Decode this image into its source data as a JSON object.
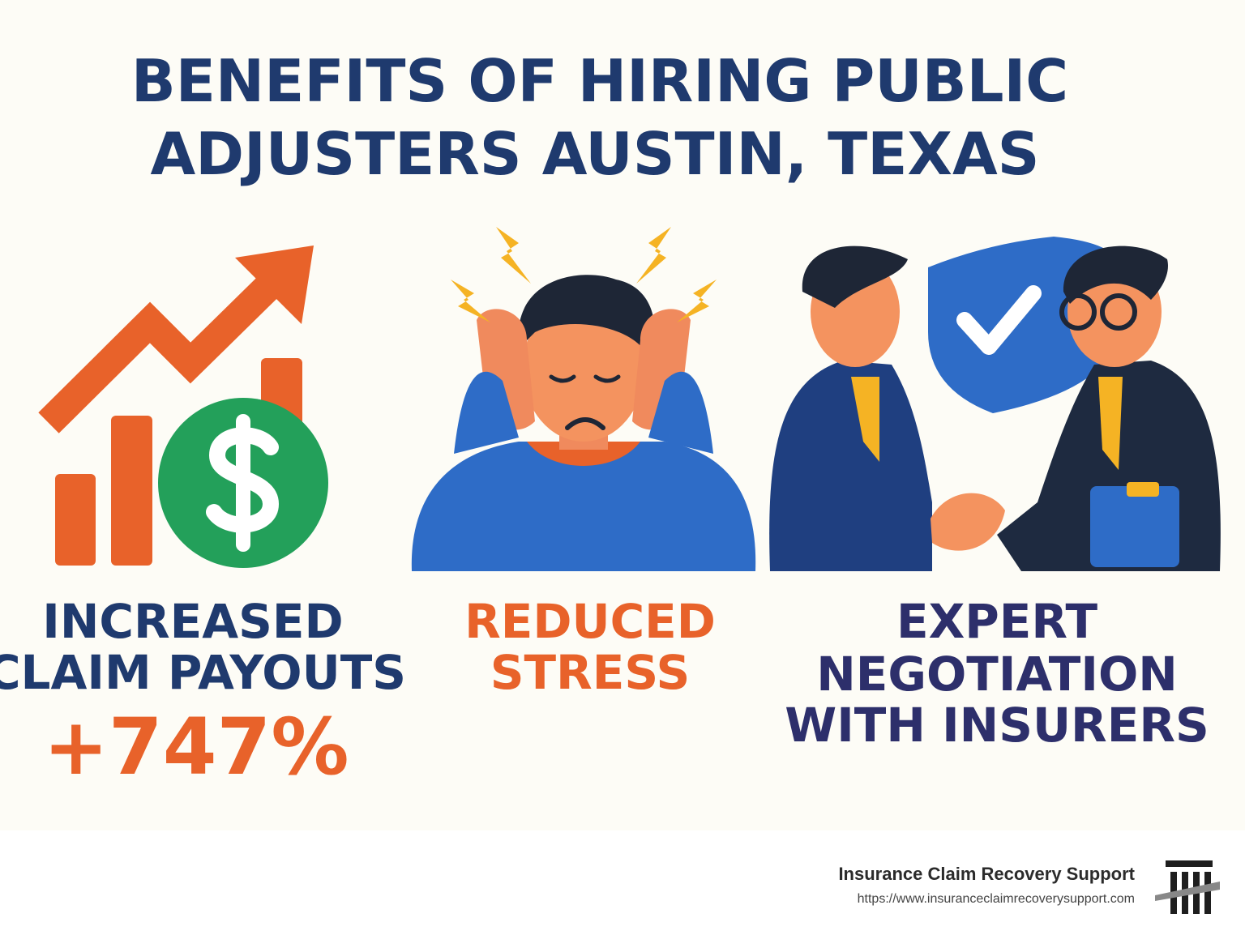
{
  "header": {
    "title_lines": [
      "BENEFITS OF HIRING PUBLIC",
      "ADJUSTERS AUSTIN, TEXAS"
    ]
  },
  "panels": [
    {
      "lines": [
        "INCREASED",
        "CLAIM PAYOUTS"
      ],
      "stat": "+747%"
    },
    {
      "lines": [
        "REDUCED",
        "STRESS"
      ]
    },
    {
      "lines": [
        "EXPERT",
        "NEGOTIATION",
        "WITH INSURERS"
      ]
    }
  ],
  "footer": {
    "brand": "Insurance Claim Recovery Support",
    "url": "https://www.insuranceclaimrecoverysupport.com"
  }
}
